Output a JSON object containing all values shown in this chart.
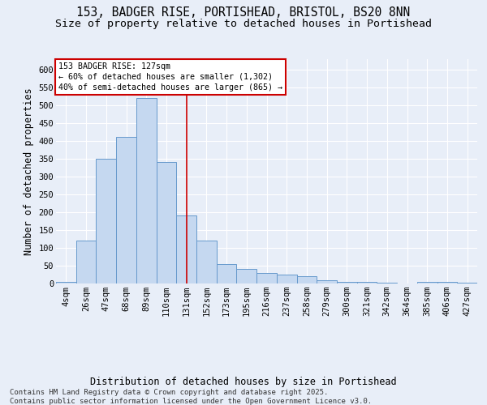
{
  "title_line1": "153, BADGER RISE, PORTISHEAD, BRISTOL, BS20 8NN",
  "title_line2": "Size of property relative to detached houses in Portishead",
  "xlabel": "Distribution of detached houses by size in Portishead",
  "ylabel": "Number of detached properties",
  "categories": [
    "4sqm",
    "26sqm",
    "47sqm",
    "68sqm",
    "89sqm",
    "110sqm",
    "131sqm",
    "152sqm",
    "173sqm",
    "195sqm",
    "216sqm",
    "237sqm",
    "258sqm",
    "279sqm",
    "300sqm",
    "321sqm",
    "342sqm",
    "364sqm",
    "385sqm",
    "406sqm",
    "427sqm"
  ],
  "values": [
    5,
    120,
    350,
    410,
    520,
    340,
    190,
    120,
    55,
    40,
    30,
    25,
    20,
    10,
    5,
    5,
    2,
    0,
    5,
    5,
    2
  ],
  "bar_color": "#c5d8f0",
  "bar_edge_color": "#6699cc",
  "vline_color": "#cc0000",
  "annotation_text": "153 BADGER RISE: 127sqm\n← 60% of detached houses are smaller (1,302)\n40% of semi-detached houses are larger (865) →",
  "annotation_box_color": "#ffffff",
  "annotation_box_edge": "#cc0000",
  "bg_color": "#e8eef8",
  "plot_bg_color": "#e8eef8",
  "grid_color": "#ffffff",
  "ylim": [
    0,
    630
  ],
  "yticks": [
    0,
    50,
    100,
    150,
    200,
    250,
    300,
    350,
    400,
    450,
    500,
    550,
    600
  ],
  "footnote": "Contains HM Land Registry data © Crown copyright and database right 2025.\nContains public sector information licensed under the Open Government Licence v3.0.",
  "title_fontsize": 10.5,
  "subtitle_fontsize": 9.5,
  "label_fontsize": 8.5,
  "tick_fontsize": 7.5,
  "footnote_fontsize": 6.5
}
